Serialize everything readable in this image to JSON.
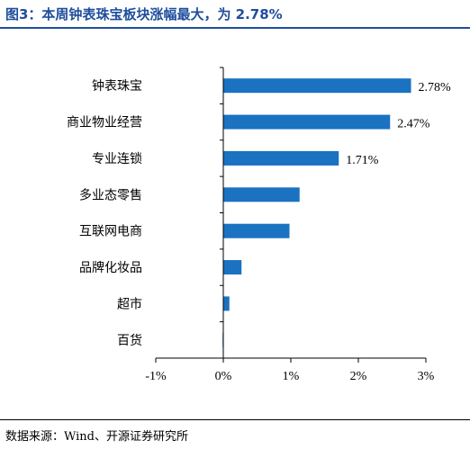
{
  "figure": {
    "title": "图3：本周钟表珠宝板块涨幅最大，为 2.78%",
    "source": "数据来源：Wind、开源证券研究所"
  },
  "colors": {
    "bar": "#1a72c1",
    "title": "#1f4e9c",
    "axis": "#000000"
  },
  "chart_data": {
    "type": "bar",
    "orientation": "horizontal",
    "categories": [
      "钟表珠宝",
      "商业物业经营",
      "专业连锁",
      "多业态零售",
      "互联网电商",
      "品牌化妆品",
      "超市",
      "百货"
    ],
    "values": [
      2.78,
      2.47,
      1.71,
      1.13,
      0.98,
      0.27,
      0.09,
      -0.01
    ],
    "data_labels": [
      "2.78%",
      "2.47%",
      "1.71%",
      "",
      "",
      "",
      "",
      ""
    ],
    "xlim": [
      -1,
      3
    ],
    "xticks": [
      -1,
      0,
      1,
      2,
      3
    ],
    "xtick_labels": [
      "-1%",
      "0%",
      "1%",
      "2%",
      "3%"
    ],
    "grid": false,
    "legend": "none"
  }
}
